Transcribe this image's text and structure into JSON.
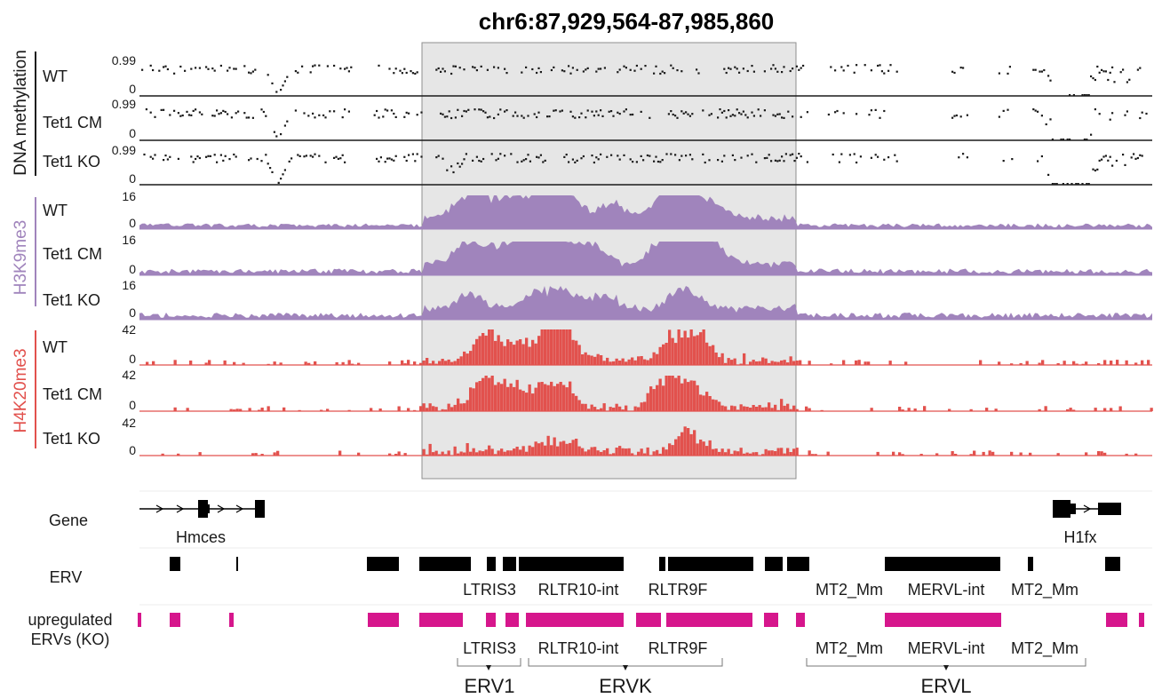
{
  "title": "chr6:87,929,564-87,985,860",
  "colors": {
    "methylation": "#1a1a1a",
    "h3k9me3": "#a084bc",
    "h4k20me3": "#e2514d",
    "erv": "#000000",
    "upregulated": "#d6168c",
    "highlight": "#e6e6e6"
  },
  "groups": {
    "methylation": {
      "label": "DNA methylation"
    },
    "h3k9me3": {
      "label": "H3K9me3"
    },
    "h4k20me3": {
      "label": "H4K20me3"
    }
  },
  "tracks": {
    "methylation": [
      {
        "name": "WT",
        "max": "0.99",
        "min": "0"
      },
      {
        "name": "Tet1 CM",
        "max": "0.99",
        "min": "0"
      },
      {
        "name": "Tet1 KO",
        "max": "0.99",
        "min": "0"
      }
    ],
    "h3k9me3": [
      {
        "name": "WT",
        "max": "16",
        "min": "0"
      },
      {
        "name": "Tet1 CM",
        "max": "16",
        "min": "0"
      },
      {
        "name": "Tet1 KO",
        "max": "16",
        "min": "0"
      }
    ],
    "h4k20me3": [
      {
        "name": "WT",
        "max": "42",
        "min": "0"
      },
      {
        "name": "Tet1 CM",
        "max": "42",
        "min": "0"
      },
      {
        "name": "Tet1 KO",
        "max": "42",
        "min": "0"
      }
    ]
  },
  "annotation_tracks": {
    "gene": {
      "label": "Gene",
      "genes": [
        "Hmces",
        "H1fx"
      ]
    },
    "erv": {
      "label": "ERV",
      "elements": [
        "LTRIS3",
        "RLTR10-int",
        "RLTR9F",
        "MT2_Mm",
        "MERVL-int",
        "MT2_Mm"
      ]
    },
    "upregulated": {
      "label_line1": "upregulated",
      "label_line2": "ERVs (KO)",
      "elements": [
        "LTRIS3",
        "RLTR10-int",
        "RLTR9F",
        "MT2_Mm",
        "MERVL-int",
        "MT2_Mm"
      ]
    }
  },
  "families": [
    "ERV1",
    "ERVK",
    "ERVL"
  ]
}
